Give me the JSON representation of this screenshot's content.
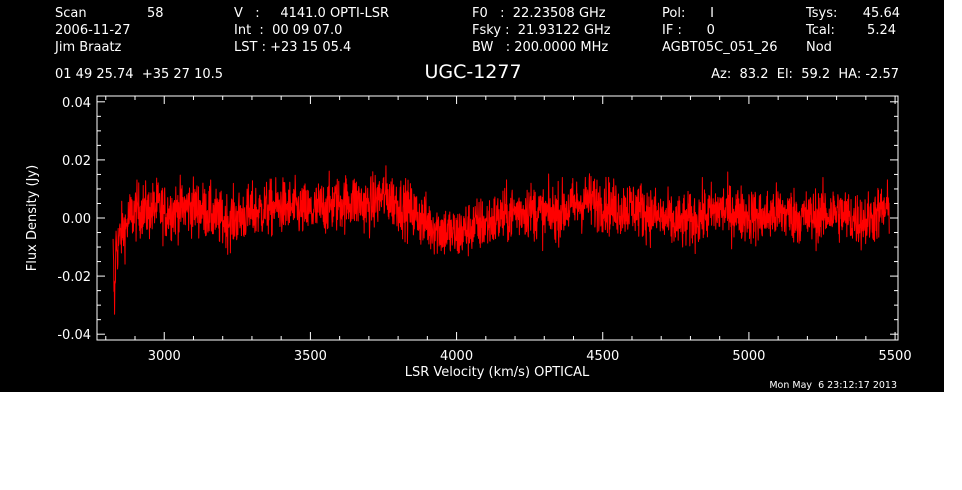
{
  "header": {
    "scan_label": "Scan",
    "scan_value": "58",
    "date": "2006-11-27",
    "observer": "Jim Braatz",
    "v_line": "V   :     4141.0 OPTI-LSR",
    "int_line": "Int  :  00 09 07.0",
    "lst_line": "LST : +23 15 05.4",
    "f0_line": "F0   :  22.23508 GHz",
    "fsky_line": "Fsky :  21.93122 GHz",
    "bw_line": "BW   : 200.0000 MHz",
    "pol_line": "Pol:      I",
    "if_line": "IF :      0",
    "project": "AGBT05C_051_26",
    "tsys_label": "Tsys:",
    "tsys_value": "45.64",
    "tcal_label": "Tcal:",
    "tcal_value": "5.24",
    "mode": "Nod",
    "coords": "01 49 25.74  +35 27 10.5",
    "az_el_ha": "Az:  83.2  El:  59.2  HA: -2.57"
  },
  "timestamp": "Mon May  6 23:12:17 2013",
  "colors": {
    "background": "#000000",
    "axes": "#ffffff",
    "trace": "#ff0000"
  },
  "chart_data": {
    "type": "line",
    "title": "UGC-1277",
    "xlabel": "LSR Velocity (km/s) OPTICAL",
    "ylabel": "Flux Density (Jy)",
    "xlim": [
      2770,
      5510
    ],
    "ylim": [
      -0.042,
      0.042
    ],
    "xticks": [
      3000,
      3500,
      4000,
      4500,
      5000,
      5500
    ],
    "xtick_labels": [
      "3000",
      "3500",
      "4000",
      "4500",
      "5000",
      "5500"
    ],
    "yticks": [
      -0.04,
      -0.02,
      0.0,
      0.02,
      0.04
    ],
    "ytick_labels": [
      "-0.04",
      "-0.02",
      "0.00",
      "0.02",
      "0.04"
    ],
    "series": [
      {
        "x": [
          2825,
          2830,
          2835,
          2840,
          2850,
          2860,
          2870,
          2880,
          2900,
          2925,
          2950,
          2975,
          3000,
          3050,
          3100,
          3150,
          3200,
          3250,
          3300,
          3350,
          3400,
          3450,
          3500,
          3550,
          3600,
          3650,
          3700,
          3750,
          3800,
          3850,
          3900,
          3950,
          4000,
          4050,
          4100,
          4150,
          4200,
          4250,
          4300,
          4350,
          4400,
          4450,
          4500,
          4550,
          4600,
          4650,
          4700,
          4750,
          4800,
          4850,
          4900,
          4950,
          5000,
          5050,
          5100,
          5150,
          5200,
          5250,
          5300,
          5350,
          5400,
          5450,
          5480
        ],
        "y": [
          -0.012,
          -0.031,
          -0.008,
          -0.01,
          -0.006,
          -0.004,
          -0.003,
          0.0,
          0.002,
          0.003,
          0.002,
          0.004,
          0.002,
          0.003,
          0.004,
          0.002,
          -0.001,
          0.0,
          0.002,
          0.003,
          0.004,
          0.003,
          0.002,
          0.004,
          0.005,
          0.006,
          0.004,
          0.008,
          0.005,
          0.002,
          -0.002,
          -0.004,
          -0.006,
          -0.003,
          -0.002,
          0.0,
          0.002,
          0.003,
          0.001,
          0.002,
          0.004,
          0.006,
          0.005,
          0.003,
          0.004,
          0.002,
          0.0,
          -0.002,
          -0.001,
          0.001,
          0.003,
          0.002,
          0.001,
          0.0,
          0.002,
          0.001,
          0.0,
          0.001,
          0.002,
          0.0,
          -0.001,
          0.002,
          0.003
        ]
      }
    ]
  }
}
